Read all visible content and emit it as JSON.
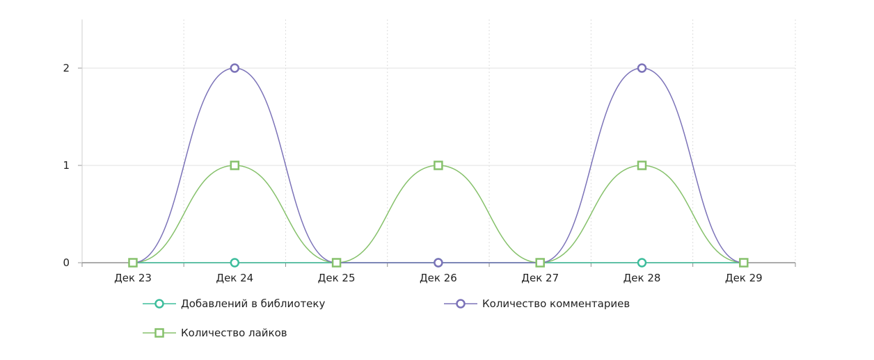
{
  "chart_data": {
    "type": "line",
    "categories": [
      "Дек 23",
      "Дек 24",
      "Дек 25",
      "Дек 26",
      "Дек 27",
      "Дек 28",
      "Дек 29"
    ],
    "ylim": [
      0,
      2.5
    ],
    "yticks": [
      0,
      1,
      2
    ],
    "grid": true,
    "legend_position": "bottom",
    "series": [
      {
        "name": "Добавлений в библиотеку",
        "values": [
          0,
          0,
          0,
          0,
          0,
          0,
          0
        ],
        "color": "#3dbd9c",
        "marker": "circle"
      },
      {
        "name": "Количество комментариев",
        "values": [
          0,
          2,
          0,
          0,
          0,
          2,
          0
        ],
        "color": "#7b72b8",
        "marker": "circle"
      },
      {
        "name": "Количество лайков",
        "values": [
          0,
          1,
          0,
          1,
          0,
          1,
          0
        ],
        "color": "#86c16b",
        "marker": "square"
      }
    ]
  }
}
